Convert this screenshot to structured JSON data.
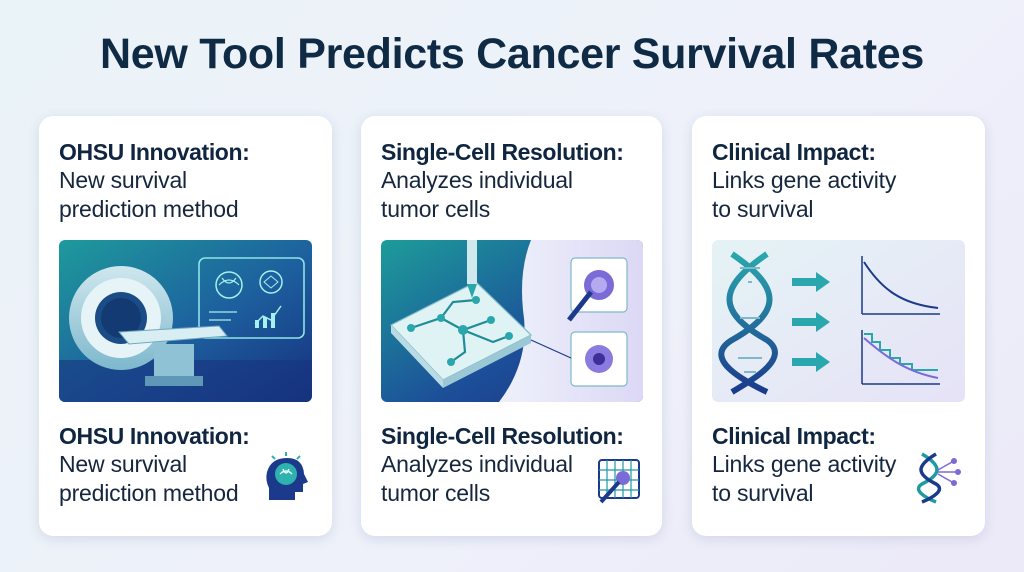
{
  "title": "New Tool Predicts Cancer Survival Rates",
  "cards": [
    {
      "heading": "OHSU Innovation:",
      "body": [
        "New survival",
        "prediction method"
      ],
      "footer_heading": "OHSU Innovation:",
      "footer_body": [
        "New survival",
        "prediction method"
      ],
      "image_icon": "mri-scanner-ai-illustration",
      "footer_icon": "brain-head-icon"
    },
    {
      "heading": "Single-Cell Resolution:",
      "body": [
        "Analyzes individual",
        "tumor cells"
      ],
      "footer_heading": "Single-Cell Resolution:",
      "footer_body": [
        "Analyzes individual",
        "tumor cells"
      ],
      "image_icon": "microfluidic-chip-illustration",
      "footer_icon": "cell-probe-icon"
    },
    {
      "heading": "Clinical Impact:",
      "body": [
        "Links gene activity",
        "to survival"
      ],
      "footer_heading": "Clinical Impact:",
      "footer_body": [
        "Links gene activity",
        "to survival"
      ],
      "image_icon": "dna-survival-curves-illustration",
      "footer_icon": "dna-network-icon"
    }
  ],
  "colors": {
    "title": "#0f2a44",
    "teal": "#1f9aa3",
    "navy": "#14307a",
    "purple": "#7a6bd6"
  }
}
